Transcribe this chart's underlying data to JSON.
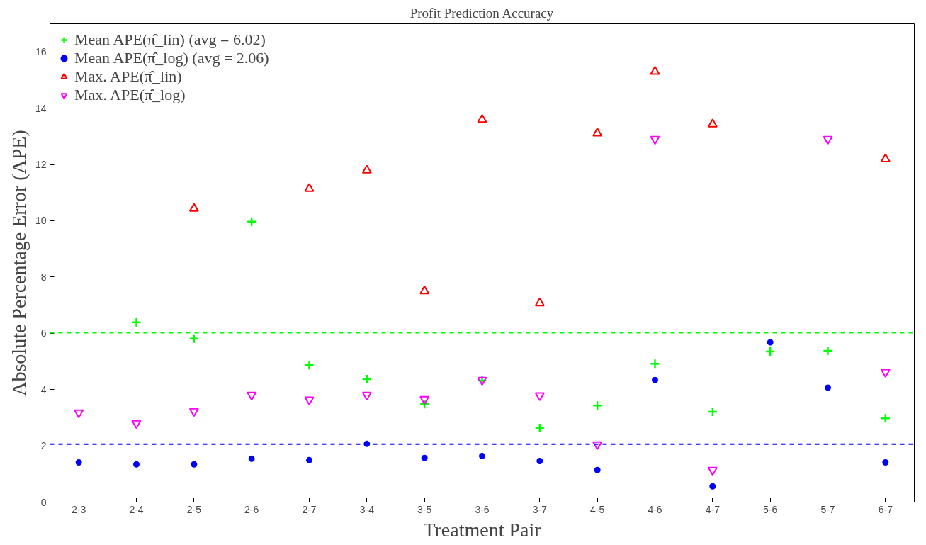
{
  "chart_data": {
    "type": "scatter",
    "title": "Profit Prediction Accuracy",
    "xlabel": "Treatment Pair",
    "ylabel": "Absolute Percentage Error (APE)",
    "categories": [
      "2-3",
      "2-4",
      "2-5",
      "2-6",
      "2-7",
      "3-4",
      "3-5",
      "3-6",
      "3-7",
      "4-5",
      "4-6",
      "4-7",
      "5-6",
      "5-7",
      "6-7"
    ],
    "series": [
      {
        "name": "Mean APE(π̂_lin) (avg = 6.02)",
        "color": "#00ff00",
        "marker": "cross",
        "values": [
          null,
          6.39,
          5.81,
          9.97,
          4.87,
          4.37,
          3.48,
          4.32,
          2.63,
          3.43,
          4.92,
          3.21,
          5.35,
          5.38,
          2.98
        ]
      },
      {
        "name": "Mean APE(π̂_log) (avg = 2.06)",
        "color": "#0000ff",
        "marker": "circle",
        "values": [
          1.41,
          1.34,
          1.34,
          1.54,
          1.49,
          2.07,
          1.57,
          1.64,
          1.46,
          1.14,
          4.34,
          0.56,
          5.68,
          4.07,
          1.41
        ]
      },
      {
        "name": "Max. APE(π̂_lin)",
        "color": "#ff0000",
        "marker": "triangle",
        "values": [
          null,
          null,
          10.43,
          null,
          11.14,
          11.79,
          7.5,
          13.59,
          7.07,
          13.11,
          15.3,
          13.43,
          null,
          null,
          12.19
        ]
      },
      {
        "name": "Max. APE(π̂_log)",
        "color": "#ff00ff",
        "marker": "triangle_down",
        "values": [
          3.18,
          2.8,
          3.23,
          3.81,
          3.64,
          3.81,
          3.66,
          4.34,
          3.79,
          2.05,
          12.9,
          1.14,
          null,
          12.9,
          4.62
        ]
      }
    ],
    "ref_lines": [
      {
        "axis": "y",
        "value": 6.02,
        "color": "#00ff00",
        "line_style": "dashed"
      },
      {
        "axis": "y",
        "value": 2.06,
        "color": "#0000ff",
        "line_style": "dashed"
      }
    ],
    "ylim": [
      0,
      17
    ],
    "yticks": [
      0,
      2,
      4,
      6,
      8,
      10,
      12,
      14,
      16
    ],
    "grid": false,
    "legend": "top left"
  }
}
